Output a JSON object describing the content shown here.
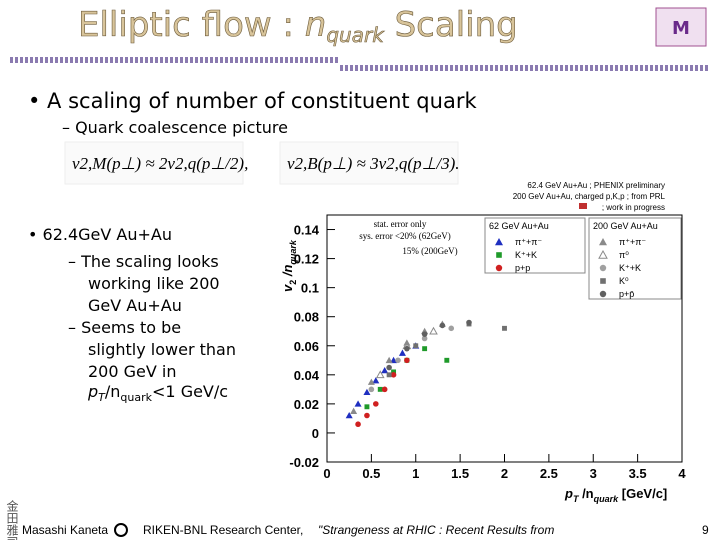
{
  "title": {
    "main": "Elliptic flow : ",
    "n": "n",
    "sub": "quark",
    "rest": " Scaling"
  },
  "bullets": [
    {
      "text": "• A scaling of number of constituent quark",
      "sub": "– Quark coalescence picture"
    }
  ],
  "formulas": [
    "v2,M(p⊥) ≈ 2v2,q(p⊥/2),",
    "v2,B(p⊥) ≈ 3v2,q(p⊥/3)."
  ],
  "left": {
    "bullet": "• 62.4GeV Au+Au",
    "items": [
      [
        "– The scaling looks",
        "working like 200",
        "GeV Au+Au"
      ],
      [
        "– Seems to be",
        "slightly lower than",
        "200 GeV in"
      ]
    ],
    "last": {
      "p": "p",
      "T": "T",
      "n": "/n",
      "quark": "quark",
      "rest": "<1 GeV/c"
    }
  },
  "chart_data": {
    "type": "scatter",
    "x_label": {
      "p": "p",
      "T": "T",
      "n": " /n",
      "quark": "quark",
      "unit": " [GeV/c]"
    },
    "y_label": {
      "v": "v",
      "two": "2",
      "n": " /n",
      "quark": "quark"
    },
    "xlim": [
      0,
      4
    ],
    "ylim": [
      -0.02,
      0.15
    ],
    "xticks": [
      0,
      0.5,
      1,
      1.5,
      2,
      2.5,
      3,
      3.5,
      4
    ],
    "yticks": [
      -0.02,
      0,
      0.02,
      0.04,
      0.06,
      0.08,
      0.1,
      0.12,
      0.14
    ],
    "annotations": [
      "62.4 GeV Au+Au ; PHENIX preliminary",
      "200 GeV Au+Au, charged p,K,p ; from PRL",
      "; work in progress",
      "stat. error only",
      "sys. error <20% (62GeV)",
      "15% (200GeV)"
    ],
    "legend_titles": [
      "62 GeV Au+Au",
      "200 GeV Au+Au"
    ],
    "series": [
      {
        "name": "π⁺+π⁻",
        "color": "#1f2fc0",
        "marker": "triangle",
        "x": [
          0.25,
          0.35,
          0.45,
          0.55,
          0.65,
          0.75,
          0.85,
          1.0
        ],
        "values": [
          0.012,
          0.02,
          0.028,
          0.036,
          0.043,
          0.05,
          0.055,
          0.06
        ]
      },
      {
        "name": "K⁺+K",
        "color": "#1f9a2a",
        "marker": "square",
        "x": [
          0.45,
          0.6,
          0.75,
          0.9,
          1.1,
          1.35
        ],
        "values": [
          0.018,
          0.03,
          0.042,
          0.05,
          0.058,
          0.05
        ]
      },
      {
        "name": "p+p",
        "color": "#d02020",
        "marker": "circle",
        "x": [
          0.35,
          0.45,
          0.55,
          0.65,
          0.75,
          0.9
        ],
        "values": [
          0.006,
          0.012,
          0.02,
          0.03,
          0.04,
          0.05
        ]
      },
      {
        "name": "π⁺+π⁻",
        "color": "#8a8a8a",
        "marker": "triangle",
        "x": [
          0.3,
          0.5,
          0.7,
          0.9,
          1.1,
          1.3
        ],
        "values": [
          0.015,
          0.035,
          0.05,
          0.062,
          0.07,
          0.075
        ]
      },
      {
        "name": "π⁰",
        "color": "#8a8a8a",
        "marker": "open-triangle",
        "x": [
          0.6,
          0.9,
          1.2
        ],
        "values": [
          0.04,
          0.06,
          0.07
        ]
      },
      {
        "name": "K⁺+K",
        "color": "#a0a0a0",
        "marker": "circle",
        "x": [
          0.5,
          0.8,
          1.1,
          1.4
        ],
        "values": [
          0.03,
          0.05,
          0.065,
          0.072
        ]
      },
      {
        "name": "K⁰",
        "color": "#707070",
        "marker": "square",
        "x": [
          0.7,
          1.0,
          1.6,
          2.0
        ],
        "values": [
          0.04,
          0.06,
          0.075,
          0.072
        ]
      },
      {
        "name": "p+p̄",
        "color": "#606060",
        "marker": "circle",
        "x": [
          0.7,
          0.9,
          1.1,
          1.3,
          1.6
        ],
        "values": [
          0.045,
          0.058,
          0.068,
          0.074,
          0.076
        ]
      }
    ]
  },
  "footer": {
    "kanji": "金田雅司",
    "author": "Masashi Kaneta",
    "center": "RIKEN-BNL Research Center,",
    "talk": "\"Strangeness at RHIC : Recent Results from",
    "page": "9"
  }
}
